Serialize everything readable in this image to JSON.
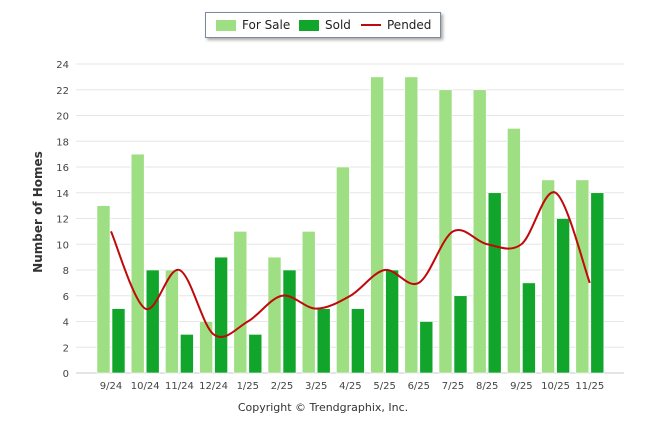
{
  "chart_data": {
    "type": "bar",
    "categories": [
      "9/24",
      "10/24",
      "11/24",
      "12/24",
      "1/25",
      "2/25",
      "3/25",
      "4/25",
      "5/25",
      "6/25",
      "7/25",
      "8/25",
      "9/25",
      "10/25",
      "11/25"
    ],
    "series": [
      {
        "name": "For Sale",
        "type": "bar",
        "color": "#9edf84",
        "values": [
          13,
          17,
          8,
          4,
          11,
          9,
          11,
          16,
          23,
          23,
          22,
          22,
          19,
          15,
          15
        ]
      },
      {
        "name": "Sold",
        "type": "bar",
        "color": "#12a52b",
        "values": [
          5,
          8,
          3,
          9,
          3,
          8,
          5,
          5,
          8,
          4,
          6,
          14,
          7,
          12,
          14
        ]
      },
      {
        "name": "Pended",
        "type": "line",
        "color": "#c0090a",
        "values": [
          11,
          5,
          8,
          3,
          4,
          6,
          5,
          6,
          8,
          7,
          11,
          10,
          10,
          14,
          7
        ]
      }
    ],
    "xlabel": "",
    "ylabel": "Number of Homes",
    "ylim": [
      0,
      24
    ],
    "yticks": [
      0,
      2,
      4,
      6,
      8,
      10,
      12,
      14,
      16,
      18,
      20,
      22,
      24
    ],
    "grid": true,
    "legend_position": "top-center"
  },
  "legend": {
    "for_sale": "For Sale",
    "sold": "Sold",
    "pended": "Pended"
  },
  "copyright": "Copyright © Trendgraphix, Inc."
}
